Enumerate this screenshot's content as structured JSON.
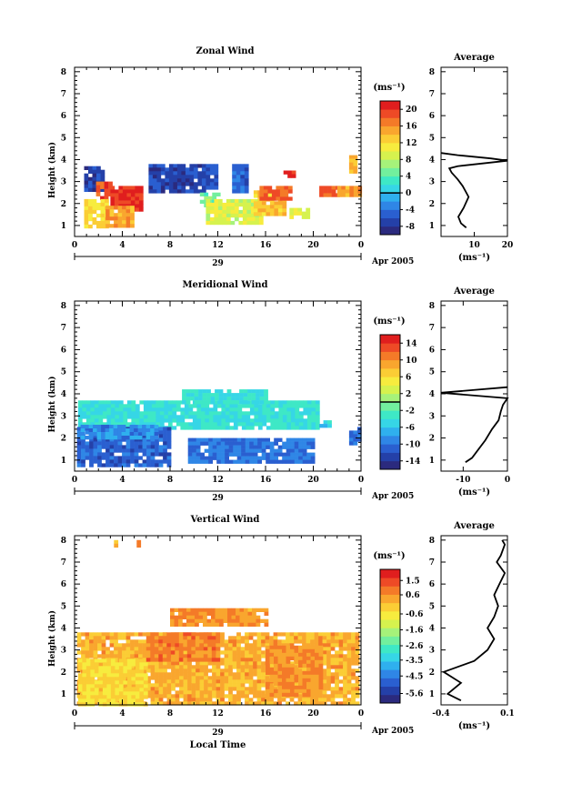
{
  "colors": {
    "rainbow": [
      "#2b2a7e",
      "#2440a8",
      "#2a5fd0",
      "#2f86e6",
      "#2fb0ee",
      "#36d6e6",
      "#3ee8c6",
      "#72ef9e",
      "#a6f27a",
      "#d6f24e",
      "#f7ec3e",
      "#fbcd35",
      "#f9a62e",
      "#f47a28",
      "#ee4a26",
      "#e01e1e"
    ]
  },
  "chart_data": [
    {
      "type": "heatmap",
      "title": "Zonal Wind",
      "ylabel": "Height (km)",
      "yticks": [
        "1",
        "2",
        "3",
        "4",
        "5",
        "6",
        "7",
        "8"
      ],
      "xticks": [
        "0",
        "4",
        "8",
        "12",
        "16",
        "20",
        "0"
      ],
      "date_label": "29",
      "month_label": "Apr 2005",
      "colorbar_unit": "(ms⁻¹)",
      "colorbar_ticks": [
        "20",
        "16",
        "12",
        "8",
        "4",
        "0",
        "-4",
        "-8"
      ],
      "colorbar_range": [
        -10,
        22
      ],
      "zero_line_value": 0,
      "xlim": [
        0,
        24
      ],
      "ylim": [
        0.5,
        8.2
      ],
      "regions": [
        {
          "x": [
            0.8,
            2.2
          ],
          "y": [
            2.6,
            3.7
          ],
          "v": -7
        },
        {
          "x": [
            1.8,
            3.0
          ],
          "y": [
            2.3,
            3.0
          ],
          "v": 19
        },
        {
          "x": [
            3.0,
            5.6
          ],
          "y": [
            1.8,
            2.8
          ],
          "v": 20
        },
        {
          "x": [
            0.8,
            2.6
          ],
          "y": [
            1.0,
            2.2
          ],
          "v": 12
        },
        {
          "x": [
            2.6,
            5.0
          ],
          "y": [
            1.0,
            1.9
          ],
          "v": 15
        },
        {
          "x": [
            6.2,
            11.0
          ],
          "y": [
            2.5,
            3.8
          ],
          "v": -7
        },
        {
          "x": [
            11.0,
            11.7
          ],
          "y": [
            2.8,
            3.8
          ],
          "v": -6
        },
        {
          "x": [
            13.2,
            14.3
          ],
          "y": [
            2.6,
            3.8
          ],
          "v": -5
        },
        {
          "x": [
            10.5,
            12.0
          ],
          "y": [
            2.0,
            2.5
          ],
          "v": 5
        },
        {
          "x": [
            11.0,
            15.5
          ],
          "y": [
            1.2,
            2.2
          ],
          "v": 9
        },
        {
          "x": [
            15.0,
            17.5
          ],
          "y": [
            1.5,
            2.6
          ],
          "v": 13
        },
        {
          "x": [
            15.5,
            18.0
          ],
          "y": [
            2.2,
            2.8
          ],
          "v": 18
        },
        {
          "x": [
            17.5,
            18.5
          ],
          "y": [
            3.3,
            3.5
          ],
          "v": 21
        },
        {
          "x": [
            18.0,
            19.5
          ],
          "y": [
            1.4,
            1.8
          ],
          "v": 9
        },
        {
          "x": [
            20.5,
            22.0
          ],
          "y": [
            2.4,
            2.8
          ],
          "v": 18
        },
        {
          "x": [
            22.0,
            23.8
          ],
          "y": [
            2.4,
            2.8
          ],
          "v": 15
        },
        {
          "x": [
            23.0,
            23.6
          ],
          "y": [
            3.4,
            4.2
          ],
          "v": 14
        }
      ],
      "average": {
        "title": "Average",
        "xlabel": "(ms⁻¹)",
        "xticks": [
          "10",
          "20"
        ],
        "xlim": [
          0,
          20
        ],
        "profile": [
          [
            7.6,
            0.9
          ],
          [
            6.0,
            1.1
          ],
          [
            5.2,
            1.4
          ],
          [
            6.8,
            1.8
          ],
          [
            8.3,
            2.3
          ],
          [
            6.5,
            2.8
          ],
          [
            5.0,
            3.1
          ],
          [
            3.2,
            3.4
          ],
          [
            2.5,
            3.6
          ],
          [
            5.0,
            3.7
          ],
          [
            20,
            3.95
          ],
          [
            15,
            4.05
          ],
          [
            5,
            4.2
          ],
          [
            0,
            4.3
          ]
        ]
      }
    },
    {
      "type": "heatmap",
      "title": "Meridional Wind",
      "ylabel": "Height (km)",
      "yticks": [
        "1",
        "2",
        "3",
        "4",
        "5",
        "6",
        "7",
        "8"
      ],
      "xticks": [
        "0",
        "4",
        "8",
        "12",
        "16",
        "20",
        "0"
      ],
      "date_label": "29",
      "month_label": "Apr 2005",
      "colorbar_unit": "(ms⁻¹)",
      "colorbar_ticks": [
        "14",
        "10",
        "6",
        "2",
        "-2",
        "-6",
        "-10",
        "-14"
      ],
      "colorbar_range": [
        -16,
        16
      ],
      "zero_line_value": 0,
      "xlim": [
        0,
        24
      ],
      "ylim": [
        0.5,
        8.2
      ],
      "regions": [
        {
          "x": [
            0.3,
            20.5
          ],
          "y": [
            2.5,
            3.7
          ],
          "v": -4
        },
        {
          "x": [
            9.0,
            16.0
          ],
          "y": [
            3.7,
            4.2
          ],
          "v": -4
        },
        {
          "x": [
            0.2,
            8.0
          ],
          "y": [
            0.8,
            2.5
          ],
          "v": -11
        },
        {
          "x": [
            0.5,
            7.0
          ],
          "y": [
            2.0,
            2.6
          ],
          "v": -9
        },
        {
          "x": [
            9.5,
            20.0
          ],
          "y": [
            1.0,
            2.0
          ],
          "v": -10
        },
        {
          "x": [
            23.0,
            23.8
          ],
          "y": [
            1.8,
            2.5
          ],
          "v": -10
        },
        {
          "x": [
            20.5,
            21.5
          ],
          "y": [
            2.5,
            2.8
          ],
          "v": -5
        }
      ],
      "average": {
        "title": "Average",
        "xlabel": "(ms⁻¹)",
        "xticks": [
          "-10",
          "0"
        ],
        "xlim": [
          -15,
          0
        ],
        "profile": [
          [
            -9.5,
            0.9
          ],
          [
            -8,
            1.1
          ],
          [
            -6.5,
            1.5
          ],
          [
            -5,
            1.9
          ],
          [
            -3.5,
            2.4
          ],
          [
            -2,
            2.8
          ],
          [
            -1.5,
            3.2
          ],
          [
            -1,
            3.5
          ],
          [
            0,
            3.8
          ],
          [
            -15,
            4.05
          ],
          [
            0,
            4.3
          ]
        ]
      }
    },
    {
      "type": "heatmap",
      "title": "Vertical Wind",
      "ylabel": "Height (km)",
      "xlabel": "Local Time",
      "yticks": [
        "1",
        "2",
        "3",
        "4",
        "5",
        "6",
        "7",
        "8"
      ],
      "xticks": [
        "0",
        "4",
        "8",
        "12",
        "16",
        "20",
        "0"
      ],
      "date_label": "29",
      "month_label": "Apr 2005",
      "colorbar_unit": "(ms⁻¹)",
      "colorbar_ticks": [
        "1.5",
        "0.6",
        "-0.6",
        "-1.6",
        "-2.6",
        "-3.5",
        "-4.5",
        "-5.6"
      ],
      "colorbar_range": [
        -6.2,
        2.2
      ],
      "zero_line_value": null,
      "xlim": [
        0,
        24
      ],
      "ylim": [
        0.5,
        8.2
      ],
      "regions": [
        {
          "x": [
            0.2,
            23.8
          ],
          "y": [
            0.6,
            3.8
          ],
          "v": 0.2
        },
        {
          "x": [
            0.3,
            6.0
          ],
          "y": [
            0.6,
            2.6
          ],
          "v": -0.4
        },
        {
          "x": [
            6.0,
            12.0
          ],
          "y": [
            2.6,
            3.8
          ],
          "v": 0.8
        },
        {
          "x": [
            16.0,
            20.5
          ],
          "y": [
            1.0,
            3.2
          ],
          "v": 0.6
        },
        {
          "x": [
            8.0,
            16.0
          ],
          "y": [
            4.2,
            4.9
          ],
          "v": 0.5
        },
        {
          "x": [
            3.3,
            3.6
          ],
          "y": [
            7.8,
            8.0
          ],
          "v": 0.3
        },
        {
          "x": [
            5.2,
            5.5
          ],
          "y": [
            7.7,
            8.0
          ],
          "v": 0.6
        }
      ],
      "average": {
        "title": "Average",
        "xlabel": "(ms⁻¹)",
        "xticks": [
          "-0.4",
          "0.1"
        ],
        "xlim": [
          -0.4,
          0.1
        ],
        "profile": [
          [
            -0.25,
            0.7
          ],
          [
            -0.35,
            1.0
          ],
          [
            -0.25,
            1.5
          ],
          [
            -0.38,
            2.0
          ],
          [
            -0.15,
            2.5
          ],
          [
            -0.05,
            3.0
          ],
          [
            0.0,
            3.5
          ],
          [
            -0.05,
            4.0
          ],
          [
            0.0,
            4.5
          ],
          [
            0.03,
            5.0
          ],
          [
            0.0,
            5.5
          ],
          [
            0.04,
            6.0
          ],
          [
            0.08,
            6.5
          ],
          [
            0.02,
            7.0
          ],
          [
            0.05,
            7.3
          ],
          [
            0.08,
            7.8
          ],
          [
            0.06,
            8.0
          ]
        ]
      }
    }
  ]
}
